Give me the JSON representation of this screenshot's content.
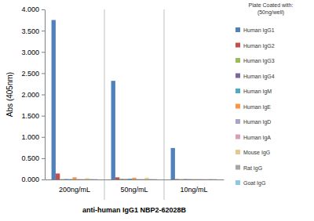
{
  "chart_data": {
    "type": "bar",
    "y_label": "Abs (405nm)",
    "x_label": "anti-human IgG1 NBP2-62028B",
    "legend_title": [
      "Plate Coated with:",
      "(50ng/well)"
    ],
    "categories": [
      "200ng/mL",
      "50ng/mL",
      "10ng/mL"
    ],
    "series": [
      {
        "name": "Human IgG1",
        "color": "#4f81bd",
        "values": [
          3.75,
          2.32,
          0.74
        ]
      },
      {
        "name": "Human IgG2",
        "color": "#c0504d",
        "values": [
          0.14,
          0.05,
          0.01
        ]
      },
      {
        "name": "Human IgG3",
        "color": "#9bbb59",
        "values": [
          0.01,
          0.02,
          0.01
        ]
      },
      {
        "name": "Human IgG4",
        "color": "#8064a2",
        "values": [
          0.01,
          0.01,
          0.01
        ]
      },
      {
        "name": "Human IgM",
        "color": "#4bacc6",
        "values": [
          0.01,
          0.02,
          0.01
        ]
      },
      {
        "name": "Human IgE",
        "color": "#f79646",
        "values": [
          0.05,
          0.04,
          0.01
        ]
      },
      {
        "name": "Human IgD",
        "color": "#a6a6c8",
        "values": [
          0.01,
          0.01,
          0.01
        ]
      },
      {
        "name": "Human IgA",
        "color": "#d99fb8",
        "values": [
          0.01,
          0.01,
          0.01
        ]
      },
      {
        "name": "Mouse IgG",
        "color": "#e6c88a",
        "values": [
          0.03,
          0.04,
          0.01
        ]
      },
      {
        "name": "Rat IgG",
        "color": "#a6a6a6",
        "values": [
          0.01,
          0.01,
          0.01
        ]
      },
      {
        "name": "Goat IgG",
        "color": "#8fc9e0",
        "values": [
          0.01,
          0.01,
          0.01
        ]
      }
    ],
    "ylim": [
      0,
      4
    ],
    "yticks": [
      {
        "value": 0,
        "label": "0.000"
      },
      {
        "value": 0.5,
        "label": "0.500"
      },
      {
        "value": 1,
        "label": "1.000"
      },
      {
        "value": 1.5,
        "label": "1.500"
      },
      {
        "value": 2,
        "label": "2.000"
      },
      {
        "value": 2.5,
        "label": "2.500"
      },
      {
        "value": 3,
        "label": "3.000"
      },
      {
        "value": 3.5,
        "label": "3.500"
      },
      {
        "value": 4,
        "label": "4.000"
      }
    ],
    "grid": false,
    "legend": "right"
  }
}
